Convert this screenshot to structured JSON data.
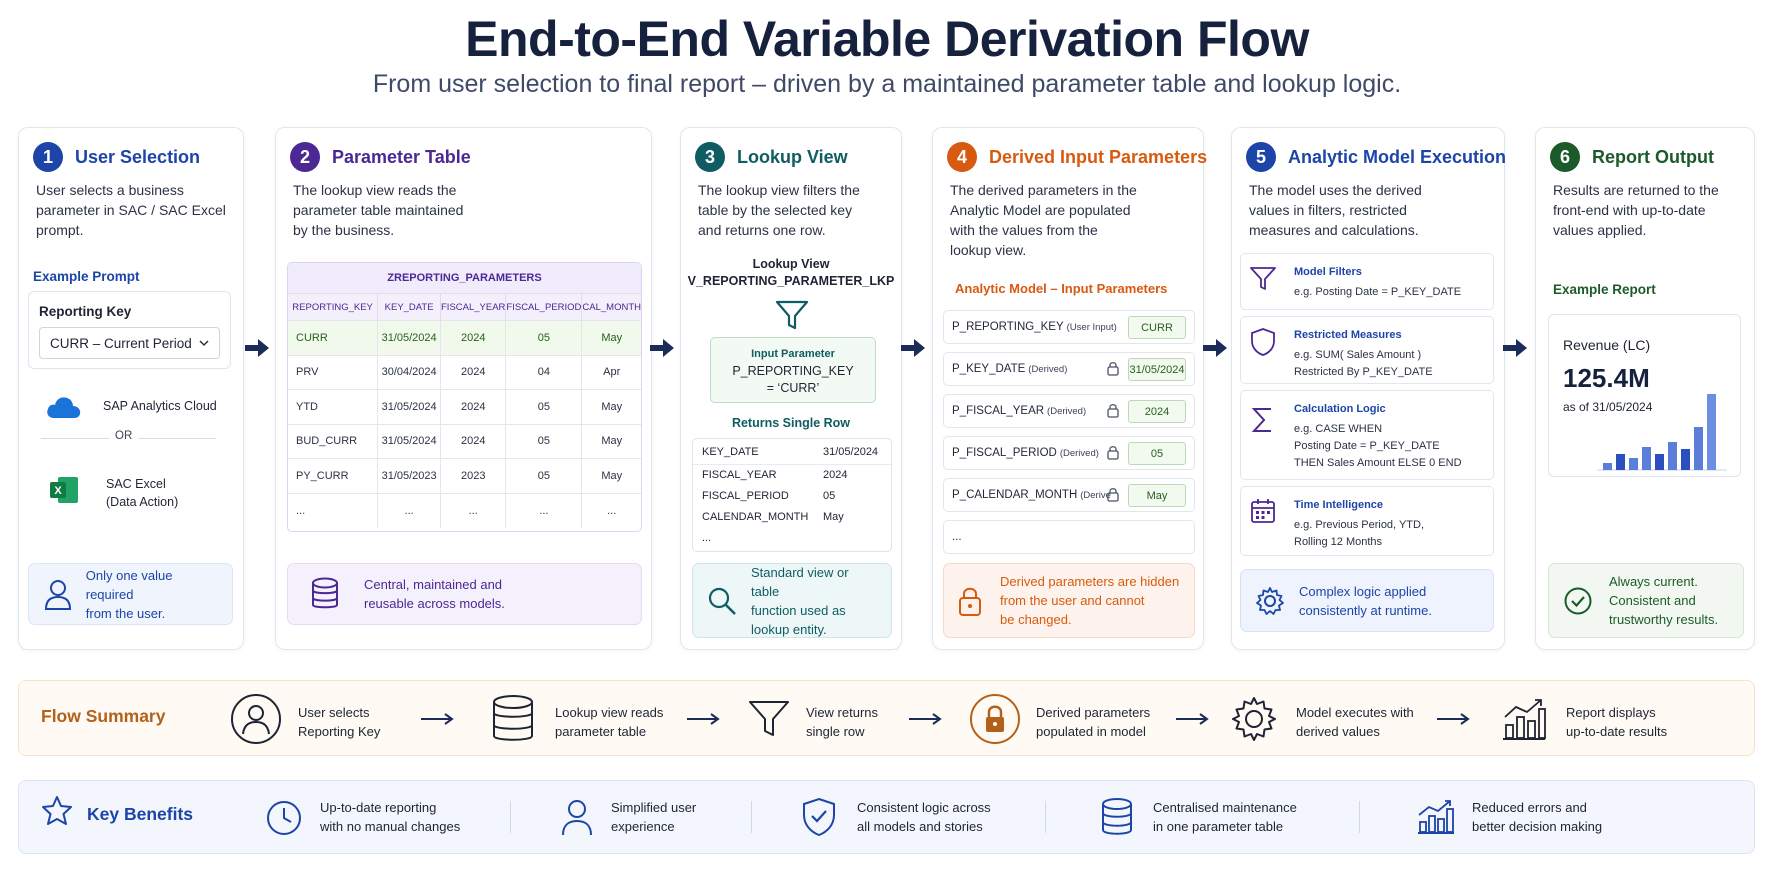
{
  "title": "End-to-End Variable Derivation Flow",
  "subtitle": "From user selection to final report – driven by a maintained parameter table and lookup logic.",
  "colors": {
    "step1": "#1d45a8",
    "step2": "#4b2894",
    "step3": "#0f5c63",
    "step4": "#d85a10",
    "step5": "#1d45a8",
    "step6": "#1b5b2a",
    "flow_accent": "#b3601a"
  },
  "steps": [
    {
      "num": "1",
      "title": "User Selection",
      "desc": [
        "User selects a business",
        "parameter in SAC / SAC Excel",
        "prompt."
      ],
      "example_label": "Example Prompt",
      "prompt_label": "Reporting Key",
      "prompt_value": "CURR – Current Period",
      "sources": [
        "SAP Analytics Cloud",
        "OR",
        "SAC Excel",
        "(Data Action)"
      ],
      "note": [
        "Only one value required",
        "from the user."
      ]
    },
    {
      "num": "2",
      "title": "Parameter Table",
      "desc": [
        "The lookup view reads the",
        "parameter table maintained",
        "by the business."
      ],
      "table_name": "ZREPORTING_PARAMETERS",
      "columns": [
        "REPORTING_KEY",
        "KEY_DATE",
        "FISCAL_YEAR",
        "FISCAL_PERIOD",
        "CAL_MONTH"
      ],
      "rows": [
        [
          "CURR",
          "31/05/2024",
          "2024",
          "05",
          "May"
        ],
        [
          "PRV",
          "30/04/2024",
          "2024",
          "04",
          "Apr"
        ],
        [
          "YTD",
          "31/05/2024",
          "2024",
          "05",
          "May"
        ],
        [
          "BUD_CURR",
          "31/05/2024",
          "2024",
          "05",
          "May"
        ],
        [
          "PY_CURR",
          "31/05/2023",
          "2023",
          "05",
          "May"
        ],
        [
          "...",
          "...",
          "...",
          "...",
          "..."
        ]
      ],
      "note": [
        "Central, maintained and",
        "reusable across models."
      ]
    },
    {
      "num": "3",
      "title": "Lookup View",
      "desc": [
        "The lookup view filters the",
        "table by the selected key",
        "and returns one row."
      ],
      "view_label": "Lookup View",
      "view_name": "V_REPORTING_PARAMETER_LKP",
      "input_label": "Input Parameter",
      "input_name": "P_REPORTING_KEY",
      "input_value": "= ‘CURR’",
      "returns_label": "Returns Single Row",
      "result": [
        [
          "KEY_DATE",
          "31/05/2024"
        ],
        [
          "FISCAL_YEAR",
          "2024"
        ],
        [
          "FISCAL_PERIOD",
          "05"
        ],
        [
          "CALENDAR_MONTH",
          "May"
        ],
        [
          "...",
          ""
        ]
      ],
      "note": [
        "Standard view or table",
        "function used as",
        "lookup entity."
      ]
    },
    {
      "num": "4",
      "title": "Derived Input Parameters",
      "desc": [
        "The derived parameters in the",
        "Analytic Model are populated",
        "with the values from the",
        "lookup view."
      ],
      "section_label": "Analytic Model – Input Parameters",
      "params": [
        {
          "name": "P_REPORTING_KEY",
          "sub": "(User Input)",
          "value": "CURR",
          "locked": false
        },
        {
          "name": "P_KEY_DATE",
          "sub": "(Derived)",
          "value": "31/05/2024",
          "locked": true
        },
        {
          "name": "P_FISCAL_YEAR",
          "sub": "(Derived)",
          "value": "2024",
          "locked": true
        },
        {
          "name": "P_FISCAL_PERIOD",
          "sub": "(Derived)",
          "value": "05",
          "locked": true
        },
        {
          "name": "P_CALENDAR_MONTH",
          "sub": "(Derive",
          "value": "May",
          "locked": true
        }
      ],
      "more": "...",
      "note": [
        "Derived parameters are hidden",
        "from the user and cannot",
        "be changed."
      ]
    },
    {
      "num": "5",
      "title": "Analytic Model Execution",
      "desc": [
        "The model uses the derived",
        "values in filters, restricted",
        "measures and calculations."
      ],
      "cards": [
        {
          "icon": "filter-icon",
          "title": "Model Filters",
          "lines": [
            "e.g. Posting Date = P_KEY_DATE"
          ]
        },
        {
          "icon": "shield-icon",
          "title": "Restricted Measures",
          "lines": [
            "e.g. SUM( Sales Amount )",
            "Restricted By P_KEY_DATE"
          ]
        },
        {
          "icon": "sigma-icon",
          "title": "Calculation Logic",
          "lines": [
            "e.g. CASE WHEN",
            "Posting Date = P_KEY_DATE",
            "THEN Sales Amount ELSE 0 END"
          ]
        },
        {
          "icon": "calendar-icon",
          "title": "Time Intelligence",
          "lines": [
            "e.g. Previous Period, YTD,",
            "Rolling 12 Months"
          ]
        }
      ],
      "note": [
        "Complex logic applied",
        "consistently at runtime."
      ]
    },
    {
      "num": "6",
      "title": "Report Output",
      "desc": [
        "Results are returned to the",
        "front-end with up-to-date",
        "values applied."
      ],
      "example_label": "Example Report",
      "kpi_label": "Revenue (LC)",
      "kpi_value": "125.4M",
      "kpi_date": "as of 31/05/2024",
      "note": [
        "Always current.",
        "Consistent and",
        "trustworthy results."
      ]
    }
  ],
  "flow_summary": {
    "title": "Flow Summary",
    "items": [
      {
        "icon": "user-icon",
        "lines": [
          "User selects",
          "Reporting Key"
        ]
      },
      {
        "icon": "database-icon",
        "lines": [
          "Lookup view reads",
          "parameter table"
        ]
      },
      {
        "icon": "filter-icon",
        "lines": [
          "View returns",
          "single row"
        ]
      },
      {
        "icon": "lock-icon",
        "lines": [
          "Derived parameters",
          "populated in model"
        ]
      },
      {
        "icon": "gear-icon",
        "lines": [
          "Model executes with",
          "derived values"
        ]
      },
      {
        "icon": "chart-icon",
        "lines": [
          "Report displays",
          "up-to-date results"
        ]
      }
    ]
  },
  "key_benefits": {
    "title": "Key Benefits",
    "items": [
      {
        "icon": "clock-icon",
        "lines": [
          "Up-to-date reporting",
          "with no manual changes"
        ]
      },
      {
        "icon": "user-icon",
        "lines": [
          "Simplified user",
          "experience"
        ]
      },
      {
        "icon": "shield-check-icon",
        "lines": [
          "Consistent logic across",
          "all models and stories"
        ]
      },
      {
        "icon": "database-icon",
        "lines": [
          "Centralised maintenance",
          "in one parameter table"
        ]
      },
      {
        "icon": "chart-icon",
        "lines": [
          "Reduced errors and",
          "better decision making"
        ]
      }
    ]
  }
}
